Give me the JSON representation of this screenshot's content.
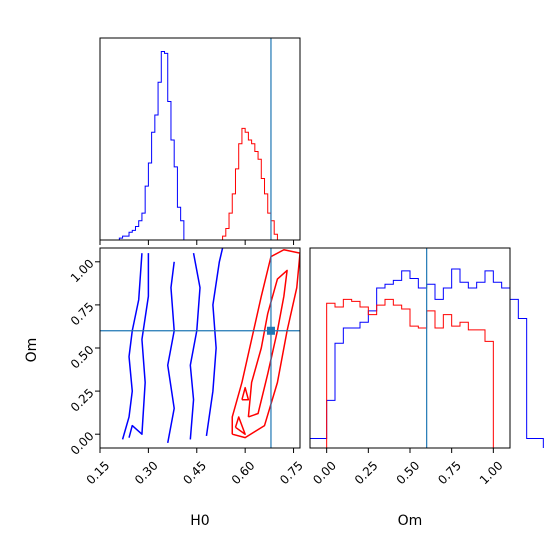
{
  "chart_data": [
    {
      "type": "histogram",
      "panel": "H0 marginal",
      "xlim": [
        0.15,
        0.77
      ],
      "truth": 0.68,
      "grid": false,
      "series": [
        {
          "color": "#0000ff",
          "step": 0.01,
          "edges_start": 0.2,
          "counts": [
            0,
            0.01,
            0.02,
            0.02,
            0.04,
            0.05,
            0.07,
            0.1,
            0.14,
            0.28,
            0.4,
            0.56,
            0.65,
            0.82,
            0.98,
            0.97,
            0.72,
            0.52,
            0.38,
            0.17,
            0.1,
            0,
            0
          ]
        },
        {
          "color": "#ff0000",
          "step": 0.01,
          "edges_start": 0.52,
          "counts": [
            0,
            0.02,
            0.06,
            0.14,
            0.24,
            0.37,
            0.5,
            0.58,
            0.56,
            0.52,
            0.5,
            0.46,
            0.42,
            0.32,
            0.24,
            0.14,
            0.1,
            0.03,
            0
          ]
        }
      ]
    },
    {
      "type": "contour",
      "panel": "Om vs H0",
      "xlabel": "H0",
      "ylabel": "Om",
      "xlim": [
        0.15,
        0.77
      ],
      "ylim": [
        -0.08,
        1.08
      ],
      "xticks": [
        "0.15",
        "0.30",
        "0.45",
        "0.60",
        "0.75"
      ],
      "yticks": [
        "0.00",
        "0.25",
        "0.50",
        "0.75",
        "1.00"
      ],
      "truth": {
        "x": 0.68,
        "y": 0.6
      },
      "contours": [
        {
          "color": "#0000ff",
          "points": [
            [
              0.22,
              -0.03
            ],
            [
              0.24,
              0.1
            ],
            [
              0.25,
              0.25
            ],
            [
              0.24,
              0.45
            ],
            [
              0.25,
              0.6
            ],
            [
              0.27,
              0.78
            ],
            [
              0.28,
              1.05
            ]
          ]
        },
        {
          "color": "#0000ff",
          "points": [
            [
              0.24,
              -0.02
            ],
            [
              0.25,
              0.05
            ],
            [
              0.28,
              0.0
            ],
            [
              0.29,
              0.3
            ],
            [
              0.28,
              0.55
            ],
            [
              0.3,
              0.8
            ],
            [
              0.3,
              1.05
            ]
          ]
        },
        {
          "color": "#0000ff",
          "points": [
            [
              0.36,
              -0.05
            ],
            [
              0.38,
              0.15
            ],
            [
              0.36,
              0.4
            ],
            [
              0.38,
              0.6
            ],
            [
              0.37,
              0.85
            ],
            [
              0.38,
              1.0
            ]
          ]
        },
        {
          "color": "#0000ff",
          "points": [
            [
              0.43,
              -0.03
            ],
            [
              0.44,
              0.2
            ],
            [
              0.43,
              0.4
            ],
            [
              0.45,
              0.6
            ],
            [
              0.46,
              0.85
            ],
            [
              0.44,
              1.05
            ]
          ]
        },
        {
          "color": "#0000ff",
          "points": [
            [
              0.48,
              -0.01
            ],
            [
              0.5,
              0.25
            ],
            [
              0.51,
              0.5
            ],
            [
              0.5,
              0.75
            ],
            [
              0.52,
              1.0
            ],
            [
              0.53,
              1.08
            ]
          ]
        },
        {
          "color": "#ff0000",
          "points": [
            [
              0.56,
              0.0
            ],
            [
              0.6,
              -0.02
            ],
            [
              0.66,
              0.05
            ],
            [
              0.7,
              0.3
            ],
            [
              0.73,
              0.6
            ],
            [
              0.76,
              0.85
            ],
            [
              0.77,
              1.05
            ],
            [
              0.72,
              1.07
            ],
            [
              0.68,
              1.03
            ],
            [
              0.65,
              0.8
            ],
            [
              0.62,
              0.55
            ],
            [
              0.59,
              0.3
            ],
            [
              0.56,
              0.1
            ],
            [
              0.56,
              0.0
            ]
          ]
        },
        {
          "color": "#ff0000",
          "points": [
            [
              0.61,
              0.1
            ],
            [
              0.64,
              0.12
            ],
            [
              0.67,
              0.35
            ],
            [
              0.7,
              0.6
            ],
            [
              0.72,
              0.8
            ],
            [
              0.73,
              0.95
            ],
            [
              0.7,
              0.9
            ],
            [
              0.67,
              0.7
            ],
            [
              0.65,
              0.5
            ],
            [
              0.62,
              0.3
            ],
            [
              0.61,
              0.1
            ]
          ]
        },
        {
          "color": "#ff0000",
          "points": [
            [
              0.57,
              0.04
            ],
            [
              0.58,
              0.1
            ],
            [
              0.6,
              0.0
            ],
            [
              0.57,
              0.04
            ]
          ]
        },
        {
          "color": "#ff0000",
          "points": [
            [
              0.59,
              0.2
            ],
            [
              0.6,
              0.27
            ],
            [
              0.61,
              0.2
            ],
            [
              0.59,
              0.2
            ]
          ]
        }
      ]
    },
    {
      "type": "histogram",
      "panel": "Om marginal",
      "xlabel": "Om",
      "xlim": [
        -0.1,
        1.1
      ],
      "xticks": [
        "0.00",
        "0.25",
        "0.50",
        "0.75",
        "1.00"
      ],
      "truth": 0.6,
      "grid": false,
      "series": [
        {
          "color": "#0000ff",
          "step": 0.05,
          "edges_start": -0.1,
          "counts": [
            0.05,
            0.05,
            0.25,
            0.55,
            0.63,
            0.63,
            0.66,
            0.72,
            0.84,
            0.86,
            0.88,
            0.93,
            0.89,
            0.84,
            0.86,
            0.78,
            0.84,
            0.94,
            0.87,
            0.84,
            0.87,
            0.93,
            0.87,
            0.84,
            0.78,
            0.68,
            0.05,
            0.05
          ]
        },
        {
          "color": "#ff0000",
          "step": 0.05,
          "edges_start": 0.0,
          "counts": [
            0.76,
            0.74,
            0.78,
            0.77,
            0.74,
            0.7,
            0.75,
            0.78,
            0.75,
            0.73,
            0.64,
            0.63,
            0.72,
            0.63,
            0.7,
            0.64,
            0.66,
            0.62,
            0.62,
            0.56,
            0
          ]
        }
      ]
    }
  ]
}
